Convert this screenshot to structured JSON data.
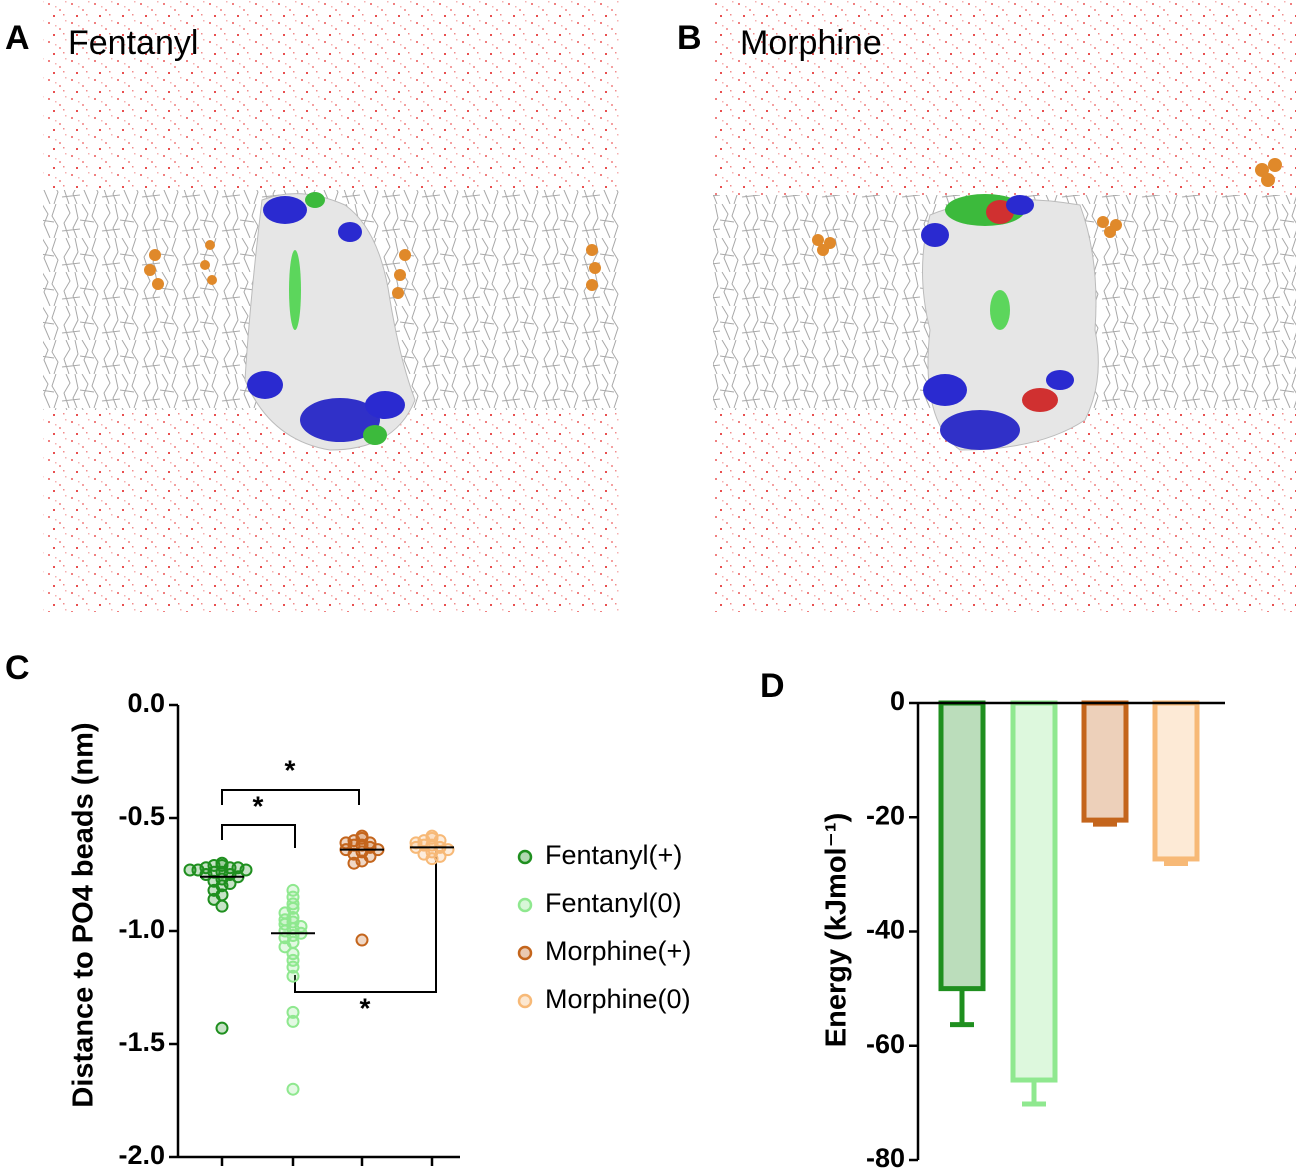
{
  "panels": [
    {
      "label": "A",
      "title": "Fentanyl"
    },
    {
      "label": "B",
      "title": "Morphine"
    }
  ],
  "chart_data": [
    {
      "type": "strip",
      "panel_label": "C",
      "y_label": "Distance to PO4 beads (nm)",
      "ylim": [
        -2.0,
        0.0
      ],
      "yticks": [
        {
          "value": -2.0,
          "label": "-2.0"
        },
        -1.5,
        {
          "value": -1.0,
          "label": "-1.0"
        },
        -0.5,
        {
          "value": 0.0,
          "label": "0.0"
        }
      ],
      "series": [
        {
          "name": "Fentanyl(+)",
          "color": "#1f8f1f",
          "median": -0.76,
          "values": [
            -0.7,
            -0.71,
            -0.71,
            -0.72,
            -0.72,
            -0.72,
            -0.73,
            -0.73,
            -0.73,
            -0.74,
            -0.74,
            -0.75,
            -0.75,
            -0.76,
            -0.77,
            -0.78,
            -0.79,
            -0.8,
            -0.82,
            -0.84,
            -0.86,
            -0.89,
            -1.43
          ]
        },
        {
          "name": "Fentanyl(0)",
          "color": "#8fe88f",
          "median": -1.01,
          "values": [
            -0.82,
            -0.85,
            -0.88,
            -0.9,
            -0.92,
            -0.94,
            -0.95,
            -0.96,
            -0.97,
            -0.98,
            -0.99,
            -1.0,
            -1.01,
            -1.02,
            -1.03,
            -1.05,
            -1.07,
            -1.1,
            -1.13,
            -1.16,
            -1.2,
            -1.36,
            -1.4,
            -1.7
          ]
        },
        {
          "name": "Morphine(+)",
          "color": "#c4651c",
          "median": -0.64,
          "values": [
            -0.58,
            -0.59,
            -0.6,
            -0.61,
            -0.61,
            -0.62,
            -0.62,
            -0.63,
            -0.64,
            -0.64,
            -0.65,
            -0.66,
            -0.67,
            -0.69,
            -0.7,
            -1.04
          ]
        },
        {
          "name": "Morphine(0)",
          "color": "#f7b977",
          "median": -0.63,
          "values": [
            -0.58,
            -0.59,
            -0.6,
            -0.6,
            -0.61,
            -0.62,
            -0.62,
            -0.63,
            -0.63,
            -0.64,
            -0.65,
            -0.66,
            -0.67,
            -0.68
          ]
        }
      ],
      "annotations": [
        "*",
        "*",
        "*"
      ]
    },
    {
      "type": "bar",
      "panel_label": "D",
      "y_label": "Energy (kJmol⁻¹)",
      "ylim": [
        -80,
        0
      ],
      "yticks": [
        -80,
        -60,
        -40,
        -20,
        0
      ],
      "values": [
        -50,
        -66,
        -20.5,
        -27.3
      ],
      "errors": [
        6.3,
        4.2,
        0.7,
        0.8
      ],
      "colors": [
        "#1f8f1f",
        "#8fe88f",
        "#c4651c",
        "#f7b977"
      ]
    }
  ]
}
